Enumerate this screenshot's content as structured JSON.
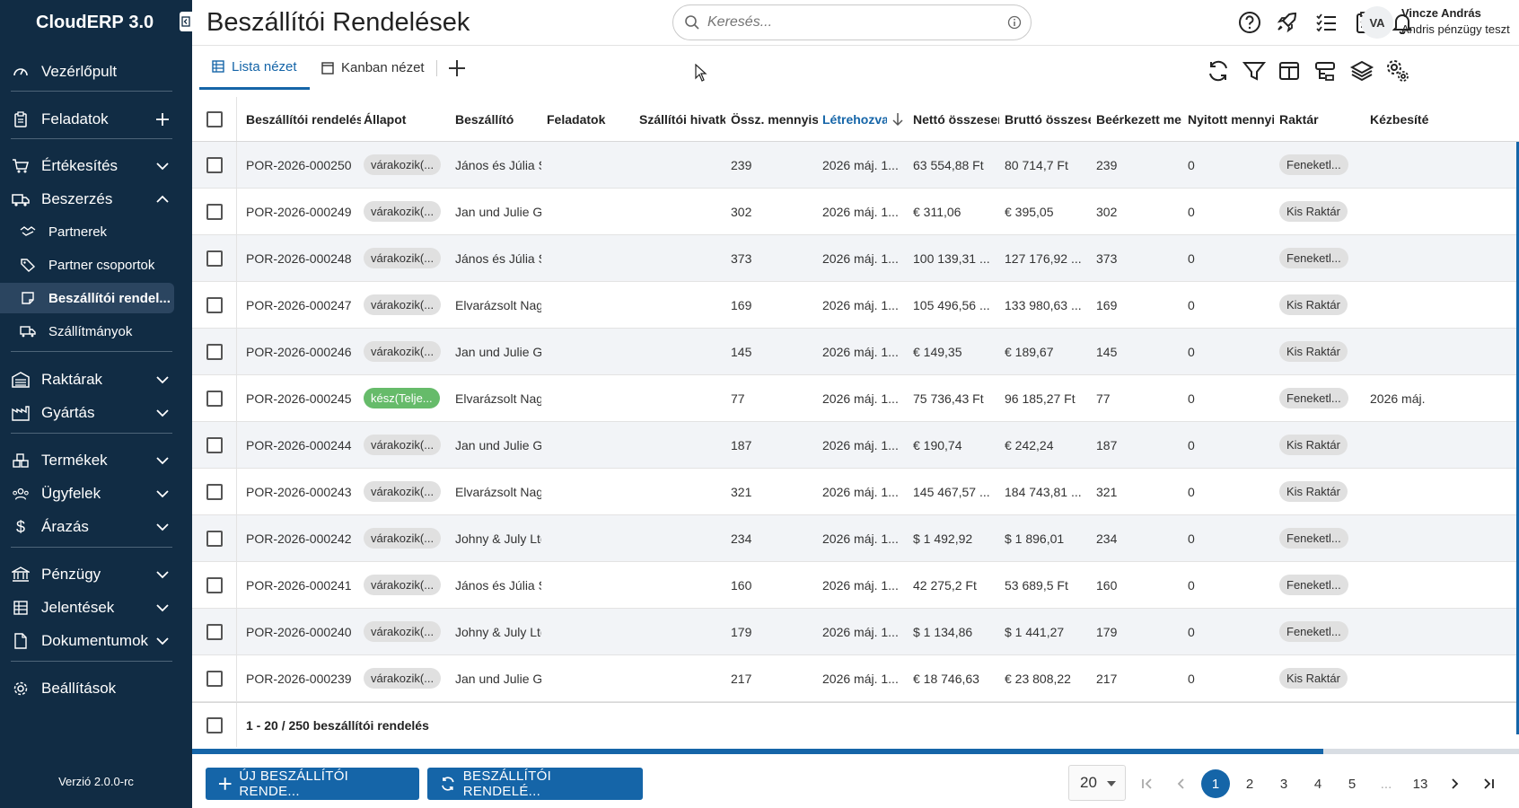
{
  "app": {
    "title": "CloudERP",
    "version_badge": "3.0",
    "version_text": "Verzió 2.0.0-rc"
  },
  "sidebar": {
    "items": [
      {
        "label": "Vezérlőpult",
        "icon": "dashboard-icon"
      },
      {
        "label": "Feladatok",
        "icon": "clipboard-icon"
      },
      {
        "label": "Értékesítés",
        "icon": "cart-icon"
      },
      {
        "label": "Beszerzés",
        "icon": "truck-icon"
      },
      {
        "label": "Partnerek",
        "icon": "handshake-icon"
      },
      {
        "label": "Partner csoportok",
        "icon": "tags-icon"
      },
      {
        "label": "Beszállítói rendel...",
        "icon": "order-icon"
      },
      {
        "label": "Szállítmányok",
        "icon": "shipment-icon"
      },
      {
        "label": "Raktárak",
        "icon": "warehouse-icon"
      },
      {
        "label": "Gyártás",
        "icon": "factory-icon"
      },
      {
        "label": "Termékek",
        "icon": "boxes-icon"
      },
      {
        "label": "Ügyfelek",
        "icon": "users-icon"
      },
      {
        "label": "Árazás",
        "icon": "dollar-icon"
      },
      {
        "label": "Pénzügy",
        "icon": "bank-icon"
      },
      {
        "label": "Jelentések",
        "icon": "table-icon"
      },
      {
        "label": "Dokumentumok",
        "icon": "document-icon"
      },
      {
        "label": "Beállítások",
        "icon": "gear-icon"
      }
    ]
  },
  "header": {
    "title": "Beszállítói Rendelések",
    "search_placeholder": "Keresés...",
    "user_initials": "VA",
    "user_name": "Vincze András",
    "user_org": "Andris pénzügy teszt"
  },
  "tabs": [
    {
      "label": "Lista nézet",
      "icon": "list-icon"
    },
    {
      "label": "Kanban nézet",
      "icon": "kanban-icon"
    }
  ],
  "table": {
    "columns": [
      "Beszállítói rendelés",
      "Állapot",
      "Beszállító",
      "Feladatok",
      "Szállítói hivatk",
      "Össz. mennyis",
      "Létrehozva",
      "Nettó összesen",
      "Bruttó összese",
      "Beérkezett men",
      "Nyitott mennyi",
      "Raktár",
      "Kézbesíté"
    ],
    "rows": [
      {
        "id": "POR-2026-000250",
        "status": "várakozik(...",
        "supplier": "János és Júlia S",
        "qty": "239",
        "created": "2026 máj. 1...",
        "net": "63 554,88  Ft",
        "gross": "80 714,7  Ft",
        "received": "239",
        "open": "0",
        "warehouse": "Feneketl...",
        "delivered": ""
      },
      {
        "id": "POR-2026-000249",
        "status": "várakozik(...",
        "supplier": "Jan und Julie G",
        "qty": "302",
        "created": "2026 máj. 1...",
        "net": "€ 311,06",
        "gross": "€ 395,05",
        "received": "302",
        "open": "0",
        "warehouse": "Kis Raktár",
        "delivered": ""
      },
      {
        "id": "POR-2026-000248",
        "status": "várakozik(...",
        "supplier": "János és Júlia S",
        "qty": "373",
        "created": "2026 máj. 1...",
        "net": "100 139,31 ...",
        "gross": "127 176,92 ...",
        "received": "373",
        "open": "0",
        "warehouse": "Feneketl...",
        "delivered": ""
      },
      {
        "id": "POR-2026-000247",
        "status": "várakozik(...",
        "supplier": "Elvarázsolt Nag",
        "qty": "169",
        "created": "2026 máj. 1...",
        "net": "105 496,56 ...",
        "gross": "133 980,63 ...",
        "received": "169",
        "open": "0",
        "warehouse": "Kis Raktár",
        "delivered": ""
      },
      {
        "id": "POR-2026-000246",
        "status": "várakozik(...",
        "supplier": "Jan und Julie G",
        "qty": "145",
        "created": "2026 máj. 1...",
        "net": "€ 149,35",
        "gross": "€ 189,67",
        "received": "145",
        "open": "0",
        "warehouse": "Kis Raktár",
        "delivered": ""
      },
      {
        "id": "POR-2026-000245",
        "status": "kész(Telje...",
        "supplier": "Elvarázsolt Nag",
        "qty": "77",
        "created": "2026 máj. 1...",
        "net": "75 736,43  Ft",
        "gross": "96 185,27  Ft",
        "received": "77",
        "open": "0",
        "warehouse": "Feneketl...",
        "delivered": "2026 máj."
      },
      {
        "id": "POR-2026-000244",
        "status": "várakozik(...",
        "supplier": "Jan und Julie G",
        "qty": "187",
        "created": "2026 máj. 1...",
        "net": "€ 190,74",
        "gross": "€ 242,24",
        "received": "187",
        "open": "0",
        "warehouse": "Kis Raktár",
        "delivered": ""
      },
      {
        "id": "POR-2026-000243",
        "status": "várakozik(...",
        "supplier": "Elvarázsolt Nag",
        "qty": "321",
        "created": "2026 máj. 1...",
        "net": "145 467,57 ...",
        "gross": "184 743,81 ...",
        "received": "321",
        "open": "0",
        "warehouse": "Kis Raktár",
        "delivered": ""
      },
      {
        "id": "POR-2026-000242",
        "status": "várakozik(...",
        "supplier": "Johny & July Ltd",
        "qty": "234",
        "created": "2026 máj. 1...",
        "net": "$ 1 492,92",
        "gross": "$ 1 896,01",
        "received": "234",
        "open": "0",
        "warehouse": "Feneketl...",
        "delivered": ""
      },
      {
        "id": "POR-2026-000241",
        "status": "várakozik(...",
        "supplier": "János és Júlia S",
        "qty": "160",
        "created": "2026 máj. 1...",
        "net": "42 275,2  Ft",
        "gross": "53 689,5  Ft",
        "received": "160",
        "open": "0",
        "warehouse": "Feneketl...",
        "delivered": ""
      },
      {
        "id": "POR-2026-000240",
        "status": "várakozik(...",
        "supplier": "Johny & July Ltd",
        "qty": "179",
        "created": "2026 máj. 1...",
        "net": "$ 1 134,86",
        "gross": "$ 1 441,27",
        "received": "179",
        "open": "0",
        "warehouse": "Feneketl...",
        "delivered": ""
      },
      {
        "id": "POR-2026-000239",
        "status": "várakozik(...",
        "supplier": "Jan und Julie G",
        "qty": "217",
        "created": "2026 máj. 1...",
        "net": "€ 18 746,63",
        "gross": "€ 23 808,22",
        "received": "217",
        "open": "0",
        "warehouse": "Kis Raktár",
        "delivered": ""
      }
    ],
    "footer": "1 - 20 / 250 beszállítói rendelés"
  },
  "actions": {
    "new_order": "ÚJ BESZÁLLÍTÓI RENDE...",
    "refresh_orders": "BESZÁLLÍTÓI RENDELÉ..."
  },
  "pagination": {
    "page_size": "20",
    "pages": [
      "1",
      "2",
      "3",
      "4",
      "5",
      "...",
      "13"
    ],
    "current": "1"
  },
  "colors": {
    "sidebar": "#112c44",
    "accent": "#1565a8",
    "success_chip": "#66bb6a"
  }
}
